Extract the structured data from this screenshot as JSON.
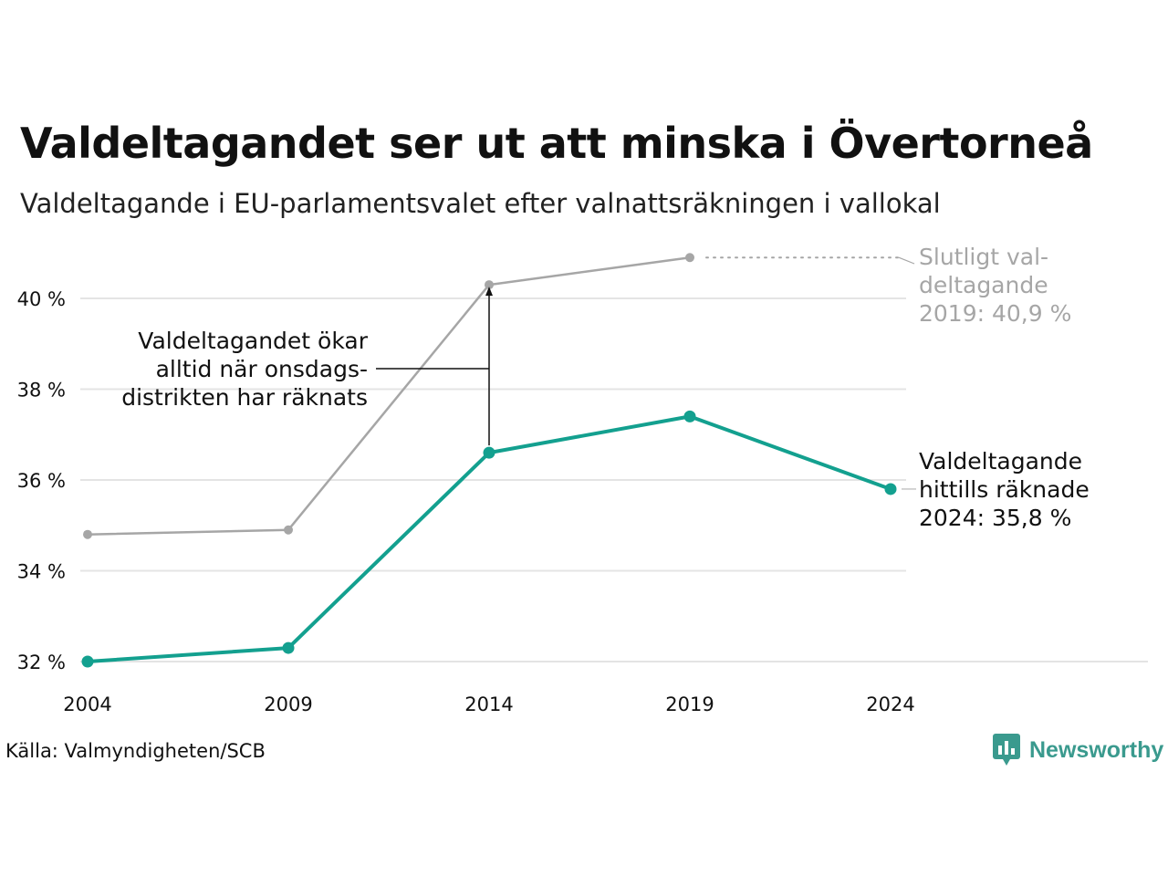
{
  "title": "Valdeltagandet ser ut att minska i Övertorneå",
  "subtitle": "Valdeltagande i EU-parlamentsvalet efter valnattsräkningen i vallokal",
  "source": "Källa: Valmyndigheten/SCB",
  "logo_text": "Newsworthy",
  "colors": {
    "final": "#a6a6a6",
    "counted": "#13a08f",
    "grid": "#e4e4e4",
    "text": "#111111"
  },
  "chart_data": {
    "type": "line",
    "x": [
      "2004",
      "2009",
      "2014",
      "2019",
      "2024"
    ],
    "yticks": [
      32,
      34,
      36,
      38,
      40
    ],
    "ytick_labels": [
      "32 %",
      "34 %",
      "36 %",
      "38 %",
      "40 %"
    ],
    "ylim": [
      32,
      41
    ],
    "grid": true,
    "series": [
      {
        "key": "final",
        "values": [
          34.8,
          34.9,
          40.3,
          40.9,
          null
        ]
      },
      {
        "key": "counted",
        "values": [
          32.0,
          32.3,
          36.6,
          37.4,
          35.8
        ]
      }
    ],
    "annotations": {
      "final_label": [
        "Slutligt val-",
        "deltagande",
        "2019: 40,9 %"
      ],
      "counted_label": [
        "Valdeltagande",
        "hittills räknade",
        "2024: 35,8 %"
      ],
      "note": [
        "Valdeltagandet ökar",
        "alltid när onsdags-",
        "distrikten har räknats"
      ]
    }
  }
}
